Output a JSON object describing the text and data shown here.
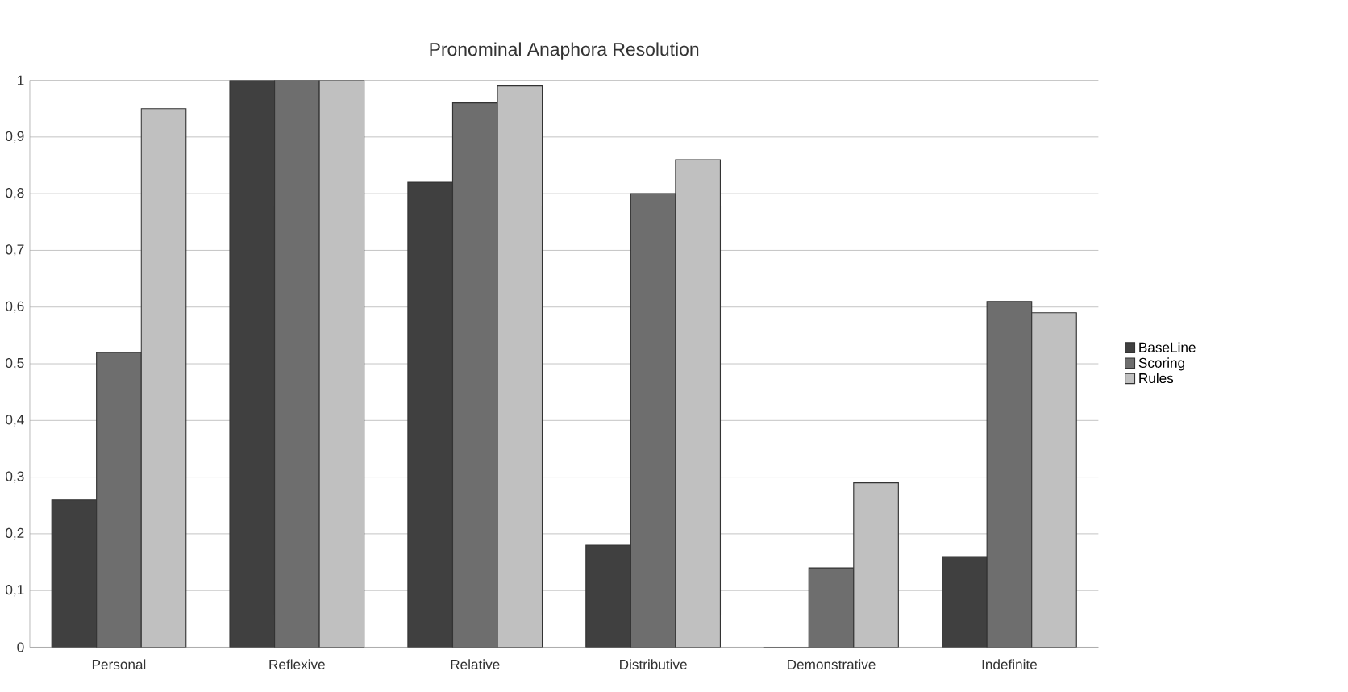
{
  "chart_data": {
    "type": "bar",
    "title": "Pronominal Anaphora Resolution",
    "categories": [
      "Personal",
      "Reflexive",
      "Relative",
      "Distributive",
      "Demonstrative",
      "Indefinite"
    ],
    "series": [
      {
        "name": "BaseLine",
        "color": "#404040",
        "values": [
          0.26,
          1,
          0.82,
          0.18,
          0,
          0.16
        ]
      },
      {
        "name": "Scoring",
        "color": "#6e6e6e",
        "values": [
          0.52,
          1,
          0.96,
          0.8,
          0.14,
          0.61
        ]
      },
      {
        "name": "Rules",
        "color": "#c0c0c0",
        "values": [
          0.95,
          1,
          0.99,
          0.86,
          0.29,
          0.59
        ]
      }
    ],
    "ylim": [
      0,
      1
    ],
    "yticks": [
      {
        "value": 0,
        "label": "0"
      },
      {
        "value": 0.1,
        "label": "0,1"
      },
      {
        "value": 0.2,
        "label": "0,2"
      },
      {
        "value": 0.3,
        "label": "0,3"
      },
      {
        "value": 0.4,
        "label": "0,4"
      },
      {
        "value": 0.5,
        "label": "0,5"
      },
      {
        "value": 0.6,
        "label": "0,6"
      },
      {
        "value": 0.7,
        "label": "0,7"
      },
      {
        "value": 0.8,
        "label": "0,8"
      },
      {
        "value": 0.9,
        "label": "0,9"
      },
      {
        "value": 1,
        "label": "1"
      }
    ],
    "grid": "y",
    "legend": "right"
  }
}
